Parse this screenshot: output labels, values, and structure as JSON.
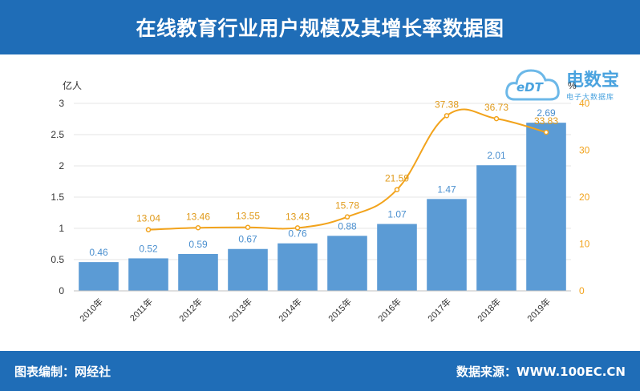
{
  "header": {
    "title": "在线教育行业用户规模及其增长率数据图"
  },
  "footer": {
    "editor": "图表编制：网经社",
    "source": "数据来源：WWW.100EC.CN"
  },
  "logo": {
    "name": "电数宝",
    "subtitle": "电子大数据库",
    "mark": "eDT"
  },
  "chart_data": {
    "type": "bar",
    "categories": [
      "2010年",
      "2011年",
      "2012年",
      "2013年",
      "2014年",
      "2015年",
      "2016年",
      "2017年",
      "2018年",
      "2019年"
    ],
    "series": [
      {
        "name": "",
        "type": "bar",
        "axis": "left",
        "values": [
          0.46,
          0.52,
          0.59,
          0.67,
          0.76,
          0.88,
          1.07,
          1.47,
          2.01,
          2.69
        ],
        "color": "#5b9bd5"
      },
      {
        "name": "",
        "type": "line",
        "axis": "right",
        "values": [
          null,
          13.04,
          13.46,
          13.55,
          13.43,
          15.78,
          21.59,
          37.38,
          36.73,
          33.83
        ],
        "color": "#f2a31c"
      }
    ],
    "ylabel": "亿人",
    "ylim": [
      0,
      3
    ],
    "yticks": [
      "0",
      "0.5",
      "1",
      "1.5",
      "2",
      "2.5",
      "3"
    ],
    "y2label": "%",
    "y2lim": [
      0,
      40
    ],
    "y2ticks": [
      "0",
      "10",
      "20",
      "30",
      "40"
    ],
    "grid": true,
    "legend": "none"
  }
}
